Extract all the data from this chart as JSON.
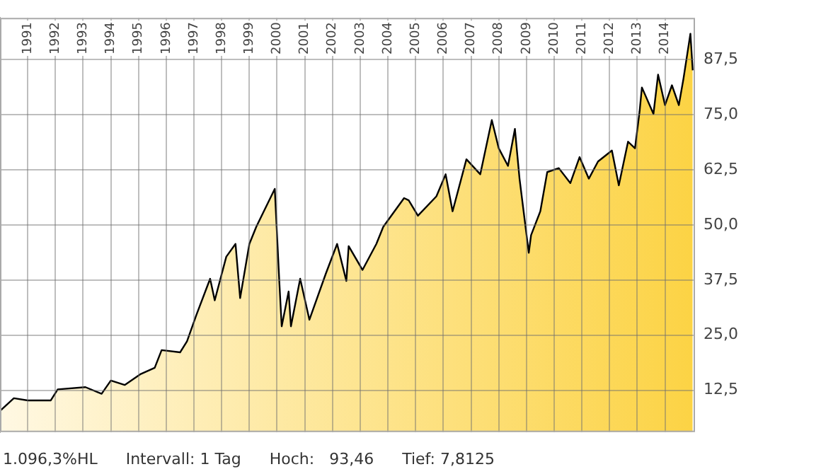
{
  "chart_data": {
    "type": "area",
    "x": [
      "1990-01",
      "1990-07",
      "1991-01",
      "1991-11",
      "1992-02",
      "1993-02",
      "1993-09",
      "1994-01",
      "1994-07",
      "1995-02",
      "1995-08",
      "1995-11",
      "1996-07",
      "1996-10",
      "1997-02",
      "1997-08",
      "1997-10",
      "1998-03",
      "1998-07",
      "1998-09",
      "1999-01",
      "1999-04",
      "1999-12",
      "2000-02",
      "2000-03",
      "2000-06",
      "2000-07",
      "2000-11",
      "2001-03",
      "2001-10",
      "2002-03",
      "2002-07",
      "2002-08",
      "2003-02",
      "2003-08",
      "2003-11",
      "2004-08",
      "2004-10",
      "2005-02",
      "2005-10",
      "2006-02",
      "2006-05",
      "2006-11",
      "2007-05",
      "2007-10",
      "2008-01",
      "2008-05",
      "2008-08",
      "2008-10",
      "2009-02",
      "2009-03",
      "2009-07",
      "2009-10",
      "2010-03",
      "2010-08",
      "2010-12",
      "2011-04",
      "2011-08",
      "2012-02",
      "2012-05",
      "2012-09",
      "2012-12",
      "2013-02",
      "2013-03",
      "2013-08",
      "2013-10",
      "2014-01",
      "2014-04",
      "2014-07",
      "2014-09",
      "2014-12",
      "2015-01"
    ],
    "series": [
      {
        "color": "#000000",
        "values": [
          7.8,
          10.7,
          10.2,
          10.2,
          12.7,
          13.2,
          11.7,
          14.7,
          13.7,
          16.2,
          17.6,
          21.6,
          21.1,
          23.6,
          29.5,
          37.8,
          32.9,
          42.8,
          45.7,
          33.4,
          45.7,
          49.6,
          58.2,
          36.8,
          27.0,
          34.9,
          27.0,
          37.8,
          28.5,
          38.8,
          45.7,
          37.3,
          45.2,
          39.8,
          45.7,
          49.6,
          56.1,
          55.6,
          52.1,
          56.5,
          61.5,
          53.1,
          64.9,
          61.5,
          73.8,
          67.4,
          63.4,
          71.8,
          60.5,
          43.7,
          47.7,
          53.1,
          62.0,
          62.9,
          59.5,
          65.4,
          60.5,
          64.4,
          66.9,
          59.0,
          68.9,
          67.4,
          75.8,
          81.2,
          75.2,
          84.1,
          77.2,
          81.7,
          77.2,
          83.2,
          93.4,
          85.1
        ]
      }
    ],
    "xlim": [
      "1990-01",
      "2015-02"
    ],
    "xticks": [
      "1991",
      "1992",
      "1993",
      "1994",
      "1995",
      "1996",
      "1997",
      "1998",
      "1999",
      "2000",
      "2001",
      "2002",
      "2003",
      "2004",
      "2005",
      "2006",
      "2007",
      "2008",
      "2009",
      "2010",
      "2011",
      "2012",
      "2013",
      "2014"
    ],
    "ylim": [
      3,
      97
    ],
    "yticks": [
      {
        "value": 12.5,
        "label": "12,5"
      },
      {
        "value": 25,
        "label": "25,0"
      },
      {
        "value": 37.5,
        "label": "37,5"
      },
      {
        "value": 50,
        "label": "50,0"
      },
      {
        "value": 62.5,
        "label": "62,5"
      },
      {
        "value": 75,
        "label": "75,0"
      },
      {
        "value": 87.5,
        "label": "87,5"
      }
    ],
    "grid": true,
    "legend": false,
    "annotations": [
      "1.096,3%HL",
      "Intervall: 1 Tag",
      "Hoch:   93,46",
      "Tief: 7,8125"
    ]
  }
}
